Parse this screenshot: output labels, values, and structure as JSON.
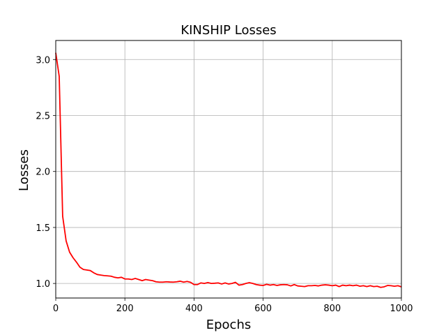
{
  "chart_data": {
    "type": "line",
    "title": "KINSHIP Losses",
    "xlabel": "Epochs",
    "ylabel": "Losses",
    "xlim": [
      0,
      1000
    ],
    "ylim": [
      0.87,
      3.17
    ],
    "x_ticks": [
      0,
      200,
      400,
      600,
      800,
      1000
    ],
    "y_ticks": [
      1.0,
      1.5,
      2.0,
      2.5,
      3.0
    ],
    "x_tick_labels": [
      "0",
      "200",
      "400",
      "600",
      "800",
      "1000"
    ],
    "y_tick_labels": [
      "1.0",
      "1.5",
      "2.0",
      "2.5",
      "3.0"
    ],
    "grid": true,
    "legend": "none",
    "series": [
      {
        "color": "#ff0000",
        "x": [
          0,
          10,
          20,
          30,
          40,
          50,
          60,
          70,
          80,
          90,
          100,
          110,
          120,
          130,
          140,
          150,
          160,
          170,
          180,
          190,
          200,
          210,
          220,
          230,
          240,
          250,
          260,
          270,
          280,
          290,
          300,
          310,
          320,
          330,
          340,
          350,
          360,
          370,
          380,
          390,
          400,
          410,
          420,
          430,
          440,
          450,
          460,
          470,
          480,
          490,
          500,
          510,
          520,
          530,
          540,
          550,
          560,
          570,
          580,
          590,
          600,
          610,
          620,
          630,
          640,
          650,
          660,
          670,
          680,
          690,
          700,
          710,
          720,
          730,
          740,
          750,
          760,
          770,
          780,
          790,
          800,
          810,
          820,
          830,
          840,
          850,
          860,
          870,
          880,
          890,
          900,
          910,
          920,
          930,
          940,
          950,
          960,
          970,
          980,
          990,
          1000
        ],
        "y": [
          3.06,
          2.85,
          1.6,
          1.38,
          1.28,
          1.23,
          1.19,
          1.145,
          1.125,
          1.12,
          1.115,
          1.095,
          1.08,
          1.075,
          1.07,
          1.068,
          1.065,
          1.055,
          1.05,
          1.055,
          1.04,
          1.04,
          1.035,
          1.045,
          1.035,
          1.025,
          1.035,
          1.03,
          1.025,
          1.015,
          1.012,
          1.012,
          1.015,
          1.013,
          1.012,
          1.015,
          1.02,
          1.012,
          1.018,
          1.01,
          0.99,
          0.99,
          1.005,
          1.0,
          1.008,
          1.0,
          1.002,
          1.005,
          0.995,
          1.005,
          0.995,
          1.0,
          1.01,
          0.985,
          0.99,
          1.0,
          1.007,
          1.0,
          0.99,
          0.985,
          0.982,
          0.992,
          0.985,
          0.99,
          0.982,
          0.988,
          0.99,
          0.988,
          0.978,
          0.99,
          0.978,
          0.975,
          0.972,
          0.98,
          0.98,
          0.982,
          0.978,
          0.985,
          0.988,
          0.985,
          0.98,
          0.985,
          0.972,
          0.985,
          0.98,
          0.985,
          0.98,
          0.985,
          0.975,
          0.98,
          0.972,
          0.98,
          0.972,
          0.975,
          0.965,
          0.97,
          0.982,
          0.98,
          0.975,
          0.98,
          0.97
        ]
      }
    ]
  }
}
